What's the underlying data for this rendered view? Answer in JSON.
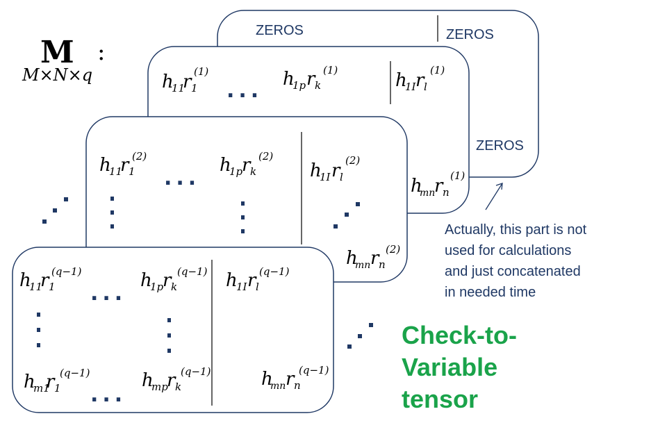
{
  "tensor_label": {
    "symbol": "M",
    "dims": "M×N×q",
    "colon": ":"
  },
  "zeros": [
    "ZEROS",
    "ZEROS",
    "ZEROS"
  ],
  "ellipsis": "...",
  "layer1": {
    "sup": "(1)",
    "e1": {
      "h": "h",
      "hsub": "11",
      "r": "r",
      "rsub": "1"
    },
    "e2": {
      "h": "h",
      "hsub": "1p",
      "r": "r",
      "rsub": "k"
    },
    "e3": {
      "h": "h",
      "hsub": "1I",
      "r": "r",
      "rsub": "l"
    },
    "e4": {
      "h": "h",
      "hsub": "mn",
      "r": "r",
      "rsub": "n"
    }
  },
  "layer2": {
    "sup": "(2)",
    "e1": {
      "h": "h",
      "hsub": "11",
      "r": "r",
      "rsub": "1"
    },
    "e2": {
      "h": "h",
      "hsub": "1p",
      "r": "r",
      "rsub": "k"
    },
    "e3": {
      "h": "h",
      "hsub": "1I",
      "r": "r",
      "rsub": "l"
    },
    "e4": {
      "h": "h",
      "hsub": "mn",
      "r": "r",
      "rsub": "n"
    }
  },
  "layer3": {
    "sup": "(q−1)",
    "e1": {
      "h": "h",
      "hsub": "11",
      "r": "r",
      "rsub": "1"
    },
    "e2": {
      "h": "h",
      "hsub": "1p",
      "r": "r",
      "rsub": "k"
    },
    "e3": {
      "h": "h",
      "hsub": "1I",
      "r": "r",
      "rsub": "l"
    },
    "e4": {
      "h": "h",
      "hsub": "m1",
      "r": "r",
      "rsub": "1"
    },
    "e5": {
      "h": "h",
      "hsub": "mp",
      "r": "r",
      "rsub": "k"
    },
    "e6": {
      "h": "h",
      "hsub": "mn",
      "r": "r",
      "rsub": "n"
    }
  },
  "note": "Actually, this part is not\nused for calculations\nand just concatenated\nin needed time",
  "title": [
    "Check-to-",
    "Variable",
    "tensor"
  ],
  "colors": {
    "box_stroke": "#1f3864",
    "dots": "#1f3864",
    "title": "#1aa34a",
    "text": "#000000"
  }
}
